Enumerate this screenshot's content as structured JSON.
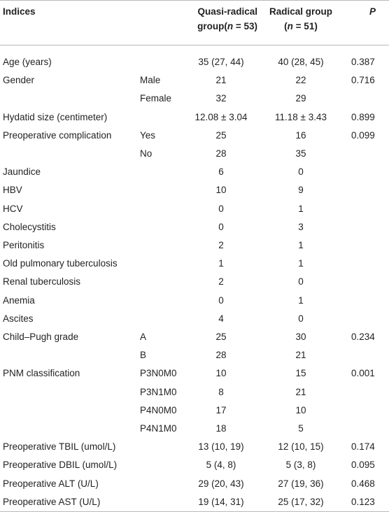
{
  "header": {
    "indices": "Indices",
    "quasi": [
      "Quasi-radical",
      "group(",
      "n",
      " = 53)"
    ],
    "radical": [
      "Radical group",
      "(",
      "n",
      " = 51)"
    ],
    "p": "P"
  },
  "table": {
    "rows": [
      {
        "label": "Age (years)",
        "quasi": "35 (27, 44)",
        "radical": "40 (28, 45)",
        "p": "0.387"
      },
      {
        "label": "Gender",
        "sub": "Male",
        "quasi": "21",
        "radical": "22",
        "p": "0.716"
      },
      {
        "sub": "Female",
        "quasi": "32",
        "radical": "29"
      },
      {
        "label": "Hydatid size (centimeter)",
        "quasi": "12.08 ± 3.04",
        "radical": "11.18 ± 3.43",
        "p": "0.899"
      },
      {
        "label": "Preoperative complication",
        "sub": "Yes",
        "quasi": "25",
        "radical": "16",
        "p": "0.099"
      },
      {
        "sub": "No",
        "quasi": "28",
        "radical": "35"
      },
      {
        "label": "Jaundice",
        "quasi": "6",
        "radical": "0"
      },
      {
        "label": "HBV",
        "quasi": "10",
        "radical": "9"
      },
      {
        "label": "HCV",
        "quasi": "0",
        "radical": "1"
      },
      {
        "label": "Cholecystitis",
        "quasi": "0",
        "radical": "3"
      },
      {
        "label": "Peritonitis",
        "quasi": "2",
        "radical": "1"
      },
      {
        "label": "Old pulmonary tuberculosis",
        "quasi": "1",
        "radical": "1"
      },
      {
        "label": "Renal tuberculosis",
        "quasi": "2",
        "radical": "0"
      },
      {
        "label": "Anemia",
        "quasi": "0",
        "radical": "1"
      },
      {
        "label": "Ascites",
        "quasi": "4",
        "radical": "0"
      },
      {
        "label": "Child–Pugh grade",
        "sub": "A",
        "quasi": "25",
        "radical": "30",
        "p": "0.234"
      },
      {
        "sub": "B",
        "quasi": "28",
        "radical": "21"
      },
      {
        "label": "PNM classification",
        "sub": "P3N0M0",
        "quasi": "10",
        "radical": "15",
        "p": "0.001"
      },
      {
        "sub": "P3N1M0",
        "quasi": "8",
        "radical": "21"
      },
      {
        "sub": "P4N0M0",
        "quasi": "17",
        "radical": "10"
      },
      {
        "sub": "P4N1M0",
        "quasi": "18",
        "radical": "5"
      },
      {
        "label": "Preoperative TBIL (umol/L)",
        "quasi": "13 (10, 19)",
        "radical": "12 (10, 15)",
        "p": "0.174"
      },
      {
        "label": "Preoperative DBIL (umol/L)",
        "quasi": "5 (4, 8)",
        "radical": "5 (3, 8)",
        "p": "0.095"
      },
      {
        "label": "Preoperative ALT (U/L)",
        "quasi": "29 (20, 43)",
        "radical": "27 (19, 36)",
        "p": "0.468"
      },
      {
        "label": "Preoperative AST (U/L)",
        "quasi": "19 (14, 31)",
        "radical": "25 (17, 32)",
        "p": "0.123"
      }
    ]
  }
}
